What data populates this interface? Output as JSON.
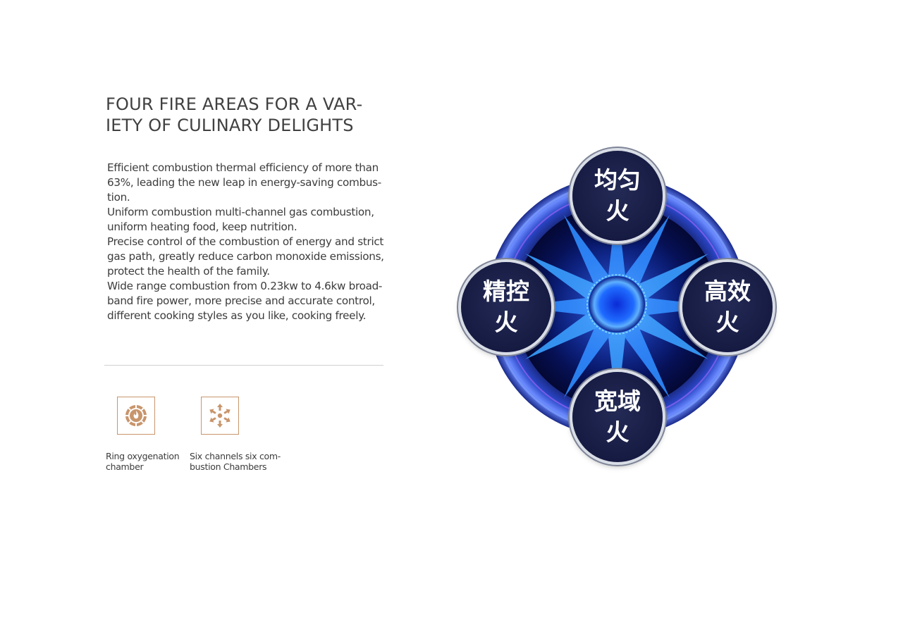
{
  "heading": {
    "line1": "FOUR FIRE AREAS FOR A VAR-",
    "line2": "IETY OF CULINARY DELIGHTS"
  },
  "body_lines": [
    "Efficient combustion thermal efficiency of more than",
    "63%, leading the new leap in energy-saving combus-",
    "tion.",
    "Uniform combustion multi-channel gas combustion,",
    "uniform heating food, keep nutrition.",
    "Precise control of the combustion of energy and strict",
    "gas path, greatly reduce carbon monoxide emissions,",
    "protect the health of the family.",
    "Wide range combustion from 0.23kw to 4.6kw broad-",
    "band fire power, more precise and accurate control,",
    "different cooking styles as you like, cooking freely."
  ],
  "features": [
    {
      "icon": "ring-flame-icon",
      "line1": "Ring oxygenation",
      "line2": "chamber"
    },
    {
      "icon": "six-channel-arrows-icon",
      "line1": "Six channels six com-",
      "line2": "bustion Chambers"
    }
  ],
  "badges": {
    "top": {
      "line1": "均匀",
      "line2": "火"
    },
    "left": {
      "line1": "精控",
      "line2": "火"
    },
    "right": {
      "line1": "高效",
      "line2": "火"
    },
    "bottom": {
      "line1": "宽域",
      "line2": "火"
    }
  },
  "colors": {
    "accent": "#c8956c",
    "badge": "#181d45",
    "flame": "#1e6bff"
  }
}
